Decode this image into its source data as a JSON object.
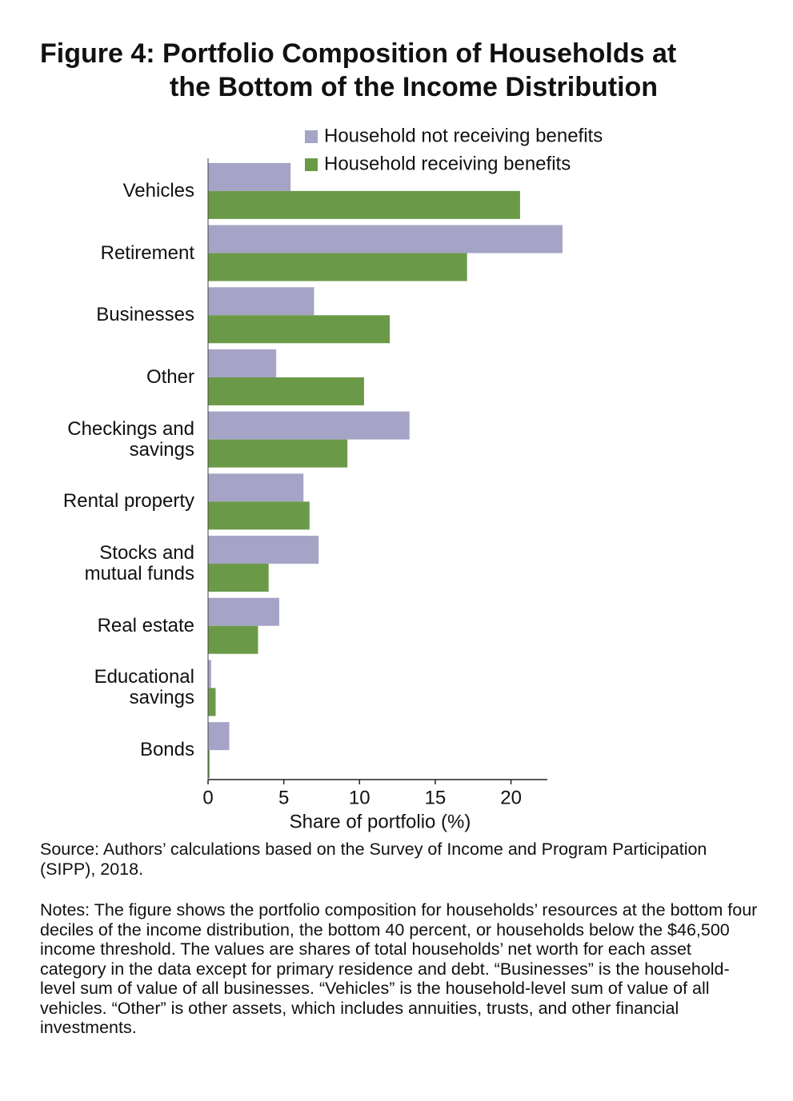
{
  "chart_data": {
    "type": "hbar",
    "title": "Figure 4: Portfolio Composition of Households at\nthe Bottom of the Income Distribution",
    "categories": [
      "Vehicles",
      "Retirement",
      "Businesses",
      "Other",
      "Checkings and\nsavings",
      "Rental property",
      "Stocks and\nmutual funds",
      "Real estate",
      "Educational\nsavings",
      "Bonds"
    ],
    "series": [
      {
        "name": "Household not receiving benefits",
        "color": "#a5a3c6",
        "values": [
          5.45,
          23.4,
          7.0,
          4.5,
          13.3,
          6.3,
          7.3,
          4.7,
          0.2,
          1.4
        ]
      },
      {
        "name": "Household receiving benefits",
        "color": "#6a9a48",
        "values": [
          20.6,
          17.1,
          12.0,
          10.3,
          9.2,
          6.7,
          4.0,
          3.3,
          0.5,
          0.1
        ]
      }
    ],
    "xlim": [
      0,
      22.4
    ],
    "xticks": [
      0,
      5,
      10,
      15,
      20
    ],
    "xlabel": "Share of portfolio (%)",
    "source": "Source: Authors’ calculations based on the Survey of Income and Program Participation (SIPP), 2018.",
    "notes": "Notes: The figure shows the portfolio composition for households’ resources at the bottom four deciles of the income distribution, the bottom 40 percent, or households below the $46,500 income threshold. The values are shares of total households’ net worth for each asset category in the data except for primary residence and debt. “Businesses” is the household-level sum of value of all businesses. “Vehicles” is the household-level sum of value of all vehicles. “Other” is other assets, which includes annuities, trusts, and other financial investments."
  }
}
